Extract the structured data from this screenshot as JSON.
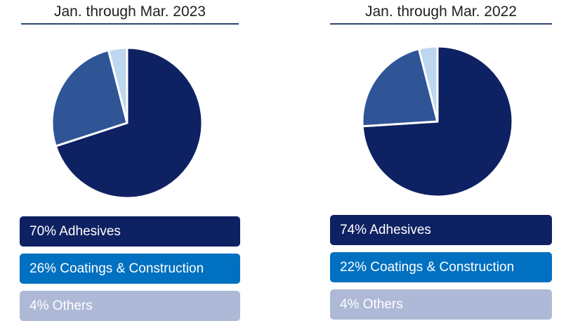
{
  "colors": {
    "adhesives": "#0e2162",
    "coatings": "#2f5597",
    "others": "#bdd7ee",
    "legend_adhesives": "#0e2162",
    "legend_coatings": "#0070c0",
    "legend_others": "#adb9d6"
  },
  "chart_data": [
    {
      "type": "pie",
      "title": "Jan. through Mar. 2023",
      "labels": [
        "Adhesives",
        "Coatings & Construction",
        "Others"
      ],
      "values": [
        70,
        26,
        4
      ],
      "legend": [
        "70% Adhesives",
        "26% Coatings & Construction",
        "4% Others"
      ],
      "legend_placement": "bottom"
    },
    {
      "type": "pie",
      "title": "Jan. through Mar. 2022",
      "labels": [
        "Adhesives",
        "Coatings & Construction",
        "Others"
      ],
      "values": [
        74,
        22,
        4
      ],
      "legend": [
        "74% Adhesives",
        "22% Coatings & Construction",
        "4% Others"
      ],
      "legend_placement": "bottom"
    }
  ]
}
